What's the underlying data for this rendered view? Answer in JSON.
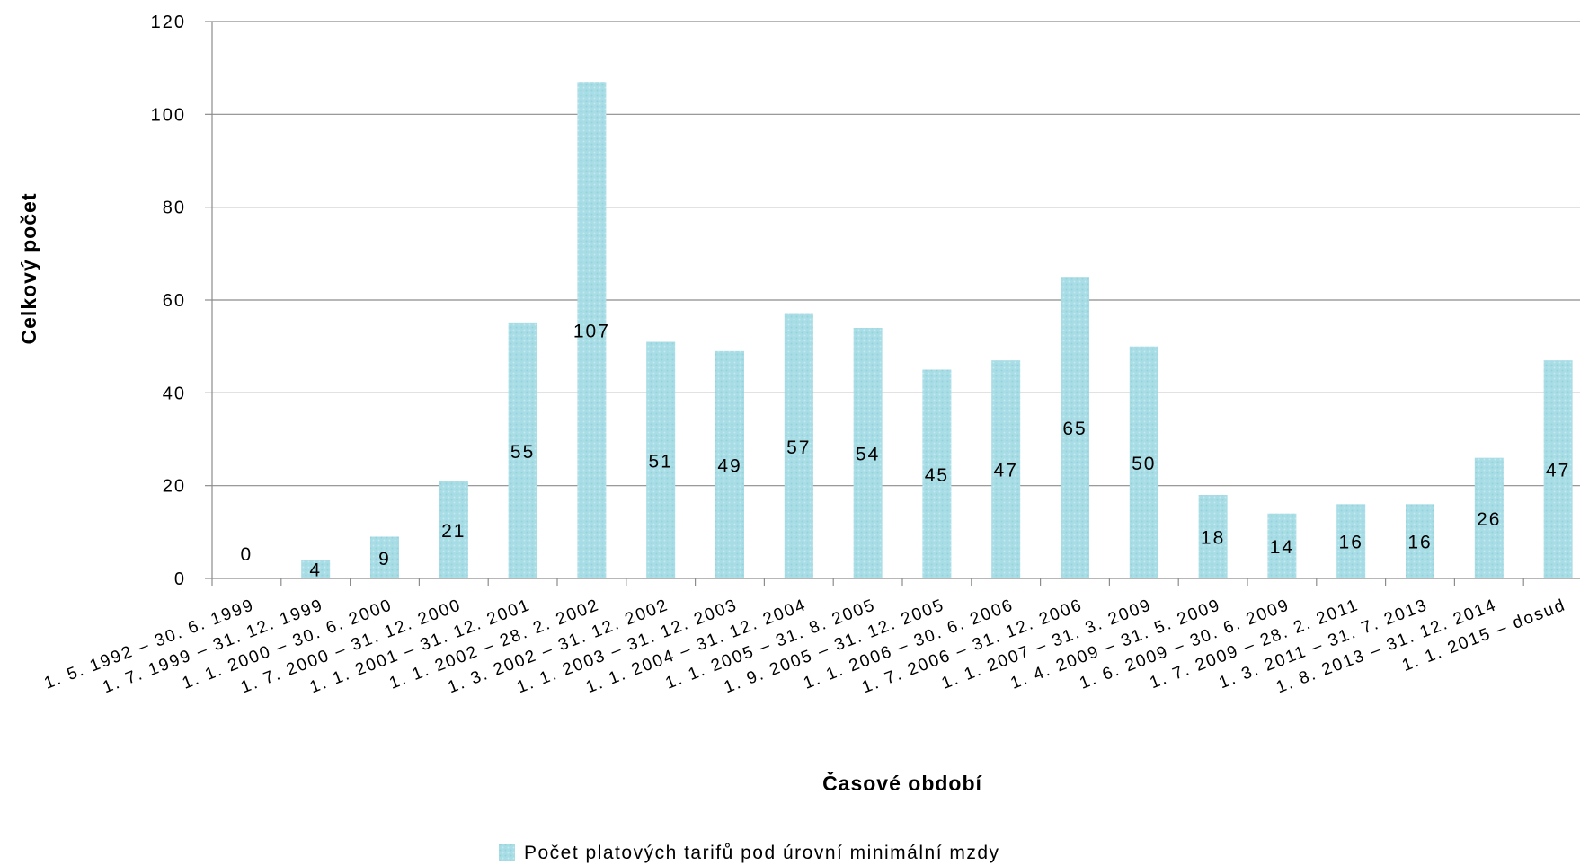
{
  "chart_data": {
    "type": "bar",
    "xlabel": "Časové období",
    "ylabel": "Celkový počet",
    "ylim": [
      0,
      120
    ],
    "yticks": [
      0,
      20,
      40,
      60,
      80,
      100,
      120
    ],
    "grid": "horizontal",
    "legend_position": "bottom",
    "categories": [
      "1. 5. 1992 – 30. 6. 1999",
      "1. 7. 1999 – 31. 12. 1999",
      "1. 1. 2000 – 30. 6. 2000",
      "1. 7. 2000 – 31. 12. 2000",
      "1. 1. 2001 – 31. 12. 2001",
      "1. 1. 2002 – 28. 2. 2002",
      "1. 3. 2002 – 31. 12. 2002",
      "1. 1. 2003 – 31. 12. 2003",
      "1. 1. 2004 – 31. 12. 2004",
      "1. 1. 2005 – 31. 8. 2005",
      "1. 9. 2005 – 31. 12. 2005",
      "1. 1. 2006 – 30. 6. 2006",
      "1. 7. 2006 – 31. 12. 2006",
      "1. 1. 2007 – 31. 3. 2009",
      "1. 4. 2009 – 31. 5. 2009",
      "1. 6. 2009 – 30. 6. 2009",
      "1. 7. 2009 – 28. 2. 2011",
      "1. 3. 2011 – 31. 7. 2013",
      "1. 8. 2013 – 31. 12. 2014",
      "1. 1. 2015 – dosud"
    ],
    "series": [
      {
        "name": "Počet platových tarifů pod úrovní minimální mzdy",
        "color": "#a8dde6",
        "values": [
          0,
          4,
          9,
          21,
          55,
          107,
          51,
          49,
          57,
          54,
          45,
          47,
          65,
          50,
          18,
          14,
          16,
          16,
          26,
          47
        ]
      }
    ]
  }
}
